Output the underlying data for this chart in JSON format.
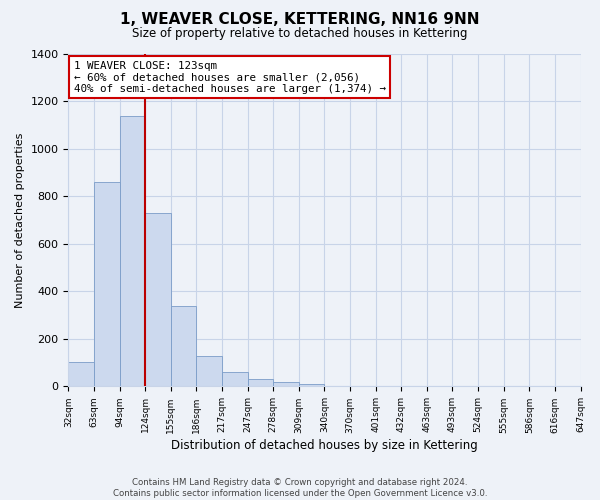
{
  "title": "1, WEAVER CLOSE, KETTERING, NN16 9NN",
  "subtitle": "Size of property relative to detached houses in Kettering",
  "xlabel": "Distribution of detached houses by size in Kettering",
  "ylabel": "Number of detached properties",
  "bar_values": [
    105,
    860,
    1140,
    730,
    340,
    130,
    62,
    30,
    20,
    12,
    0,
    0,
    0,
    0,
    0,
    0,
    0,
    0,
    0,
    0
  ],
  "categories": [
    "32sqm",
    "63sqm",
    "94sqm",
    "124sqm",
    "155sqm",
    "186sqm",
    "217sqm",
    "247sqm",
    "278sqm",
    "309sqm",
    "340sqm",
    "370sqm",
    "401sqm",
    "432sqm",
    "463sqm",
    "493sqm",
    "524sqm",
    "555sqm",
    "586sqm",
    "616sqm",
    "647sqm"
  ],
  "bar_color": "#ccd9ee",
  "bar_edge_color": "#7a9cc8",
  "marker_color": "#bb0000",
  "ylim": [
    0,
    1400
  ],
  "yticks": [
    0,
    200,
    400,
    600,
    800,
    1000,
    1200,
    1400
  ],
  "annotation_title": "1 WEAVER CLOSE: 123sqm",
  "annotation_line1": "← 60% of detached houses are smaller (2,056)",
  "annotation_line2": "40% of semi-detached houses are larger (1,374) →",
  "annotation_box_color": "#ffffff",
  "annotation_box_edge": "#cc0000",
  "grid_color": "#c8d4e8",
  "footer_line1": "Contains HM Land Registry data © Crown copyright and database right 2024.",
  "footer_line2": "Contains public sector information licensed under the Open Government Licence v3.0.",
  "background_color": "#eef2f8"
}
